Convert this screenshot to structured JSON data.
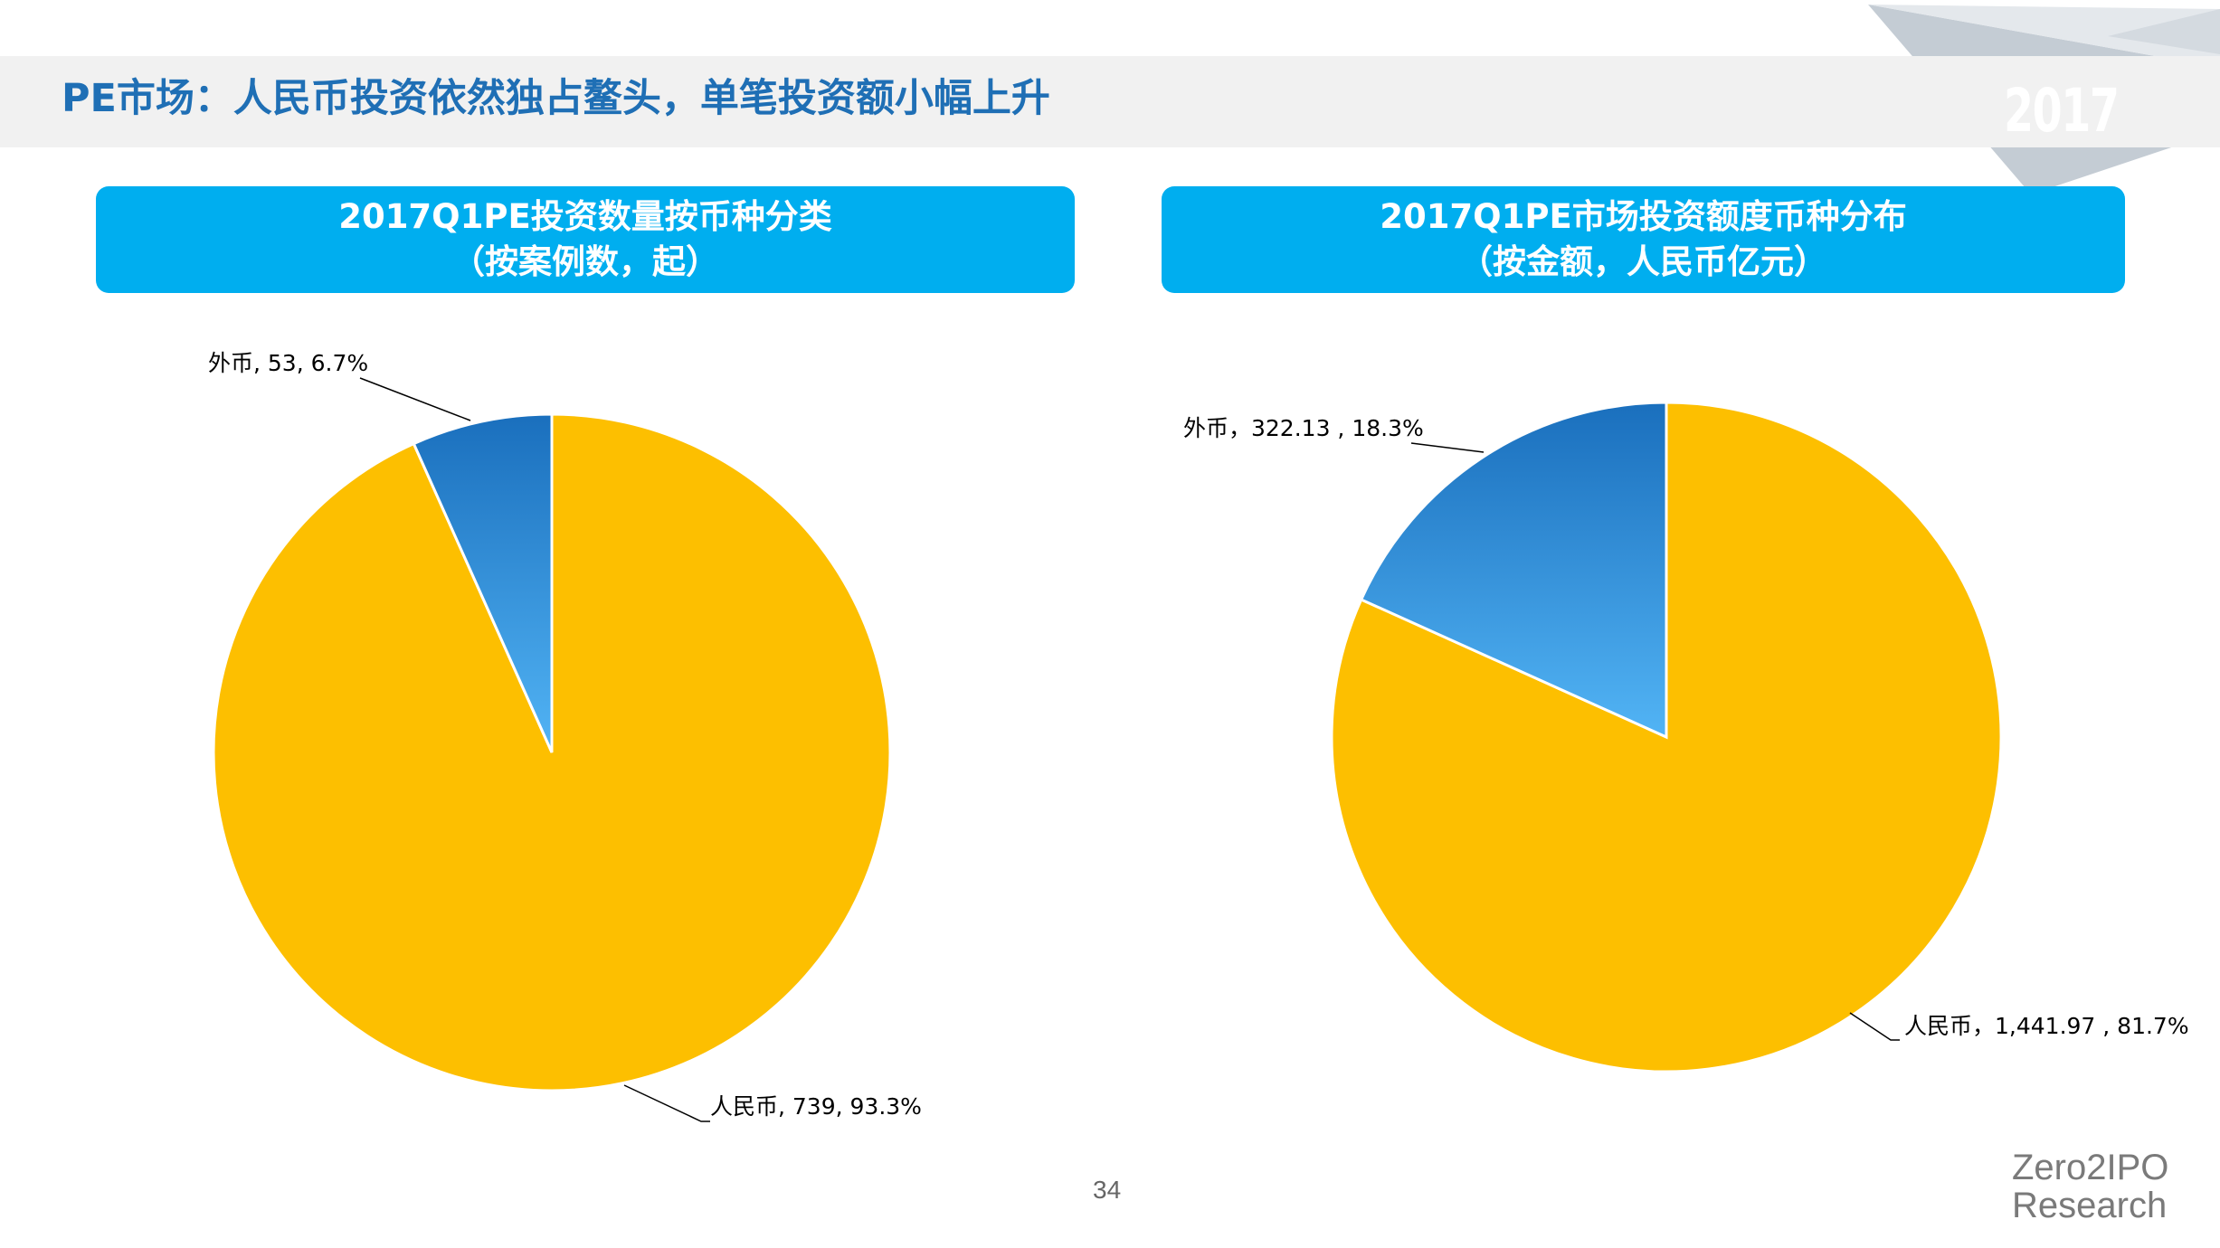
{
  "page": {
    "title": "PE市场：人民币投资依然独占鳌头，单笔投资额小幅上升",
    "year_badge": "2017",
    "page_number": "34",
    "brand_line1": "Zero2IPO",
    "brand_line2": "Research",
    "colors": {
      "title_blue": "#1f6fb5",
      "header_blue": "#00aeef",
      "rmb_gold": "#fdbf00",
      "foreign_blue": "#2f8fdc"
    }
  },
  "chart_data": [
    {
      "type": "pie",
      "header_line1": "2017Q1PE投资数量按币种分类",
      "header_line2": "（按案例数，起）",
      "slices": [
        {
          "name": "人民币",
          "value": 739,
          "percent": 93.3,
          "label": "人民币, 739, 93.3%",
          "color": "#fdbf00"
        },
        {
          "name": "外币",
          "value": 53,
          "percent": 6.7,
          "label": "外币, 53, 6.7%",
          "color": "#2f8fdc"
        }
      ]
    },
    {
      "type": "pie",
      "header_line1": "2017Q1PE市场投资额度币种分布",
      "header_line2": "（按金额，人民币亿元）",
      "slices": [
        {
          "name": "人民币",
          "value": 1441.97,
          "percent": 81.7,
          "label": "人民币，1,441.97 , 81.7%",
          "color": "#fdbf00"
        },
        {
          "name": "外币",
          "value": 322.13,
          "percent": 18.3,
          "label": "外币，322.13 , 18.3%",
          "color": "#2f8fdc"
        }
      ]
    }
  ]
}
